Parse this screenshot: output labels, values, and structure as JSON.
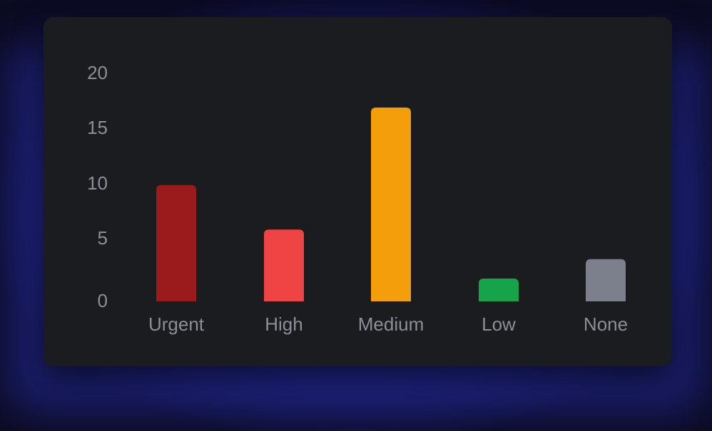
{
  "chart_data": {
    "type": "bar",
    "categories": [
      "Urgent",
      "High",
      "Medium",
      "Low",
      "None"
    ],
    "values": [
      10.2,
      6.3,
      17,
      2,
      3.7
    ],
    "colors": [
      "#9b1b1c",
      "#ef4444",
      "#f59e0b",
      "#16a34a",
      "#7c7f8c"
    ],
    "yticks": [
      "0",
      "5",
      "10",
      "15",
      "20"
    ],
    "ylim": [
      0,
      20
    ],
    "grid": false,
    "title": "",
    "xlabel": "",
    "ylabel": ""
  }
}
